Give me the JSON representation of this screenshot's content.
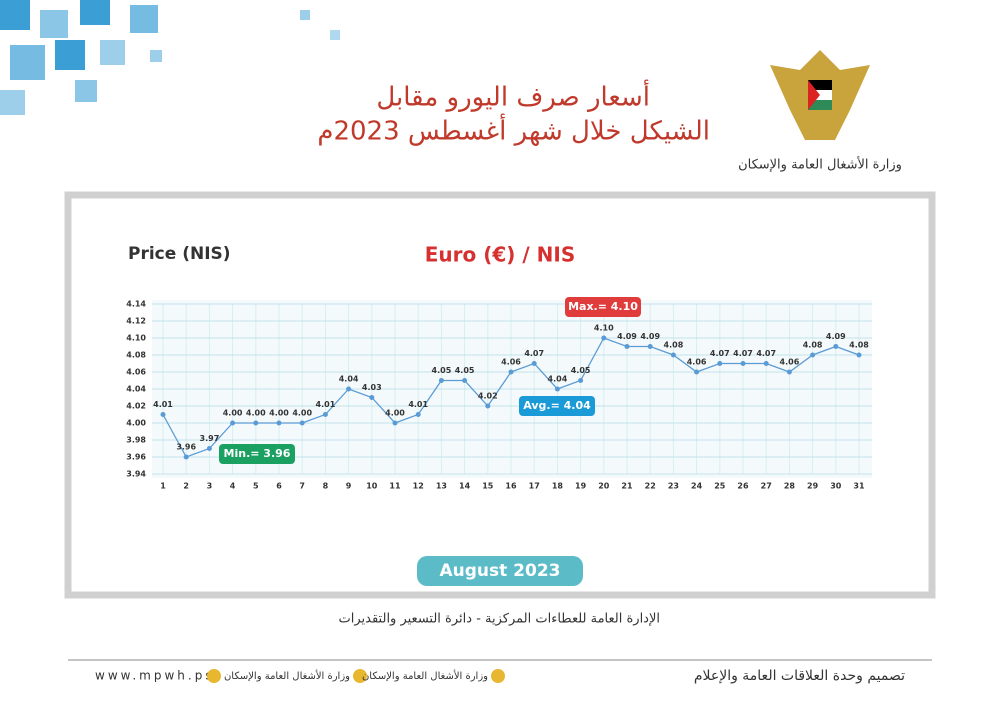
{
  "header": {
    "title_line1": "أسعار صرف اليورو مقابل",
    "title_line2": "الشيكل خلال شهر أغسطس 2023م",
    "ministry": "وزارة الأشغال العامة والإسكان"
  },
  "chart_data": {
    "type": "line",
    "title": "Euro (€) / NIS",
    "y_label": "Price (NIS)",
    "x_label": "August  2023",
    "categories": [
      "1",
      "2",
      "3",
      "4",
      "5",
      "6",
      "7",
      "8",
      "9",
      "10",
      "11",
      "12",
      "13",
      "14",
      "15",
      "16",
      "17",
      "18",
      "19",
      "20",
      "21",
      "22",
      "23",
      "24",
      "25",
      "26",
      "27",
      "28",
      "29",
      "30",
      "31"
    ],
    "values": [
      4.01,
      3.96,
      3.97,
      4.0,
      4.0,
      4.0,
      4.0,
      4.01,
      4.04,
      4.03,
      4.0,
      4.01,
      4.05,
      4.05,
      4.02,
      4.06,
      4.07,
      4.04,
      4.05,
      4.1,
      4.09,
      4.09,
      4.08,
      4.06,
      4.07,
      4.07,
      4.07,
      4.06,
      4.08,
      4.09,
      4.08
    ],
    "value_labels": [
      "4.01",
      "3.96",
      "3.97",
      "4.00",
      "4.00",
      "4.00",
      "4.00",
      "4.01",
      "4.04",
      "4.03",
      "4.00",
      "4.01",
      "4.05",
      "4.05",
      "4.02",
      "4.06",
      "4.07",
      "4.04",
      "4.05",
      "4.10",
      "4.09",
      "4.09",
      "4.08",
      "4.06",
      "4.07",
      "4.07",
      "4.07",
      "4.06",
      "4.08",
      "4.09",
      "4.08"
    ],
    "color": "#5b9bd5",
    "ylim": [
      3.94,
      4.14
    ],
    "yticks": [
      3.94,
      3.96,
      3.98,
      {
        "value": 4,
        "label": "4.00"
      },
      4.02,
      4.04,
      4.06,
      4.08,
      {
        "value": 4.1,
        "label": "4.10"
      },
      4.12,
      4.14
    ],
    "grid": true,
    "annotations": [
      {
        "text": "Max.= 4.10",
        "color": "#e03c3c"
      },
      {
        "text": "Avg.= 4.04",
        "color": "#1a9ad6"
      },
      {
        "text": "Min.= 3.96",
        "color": "#1aa060"
      }
    ]
  },
  "footer": {
    "source": "الإدارة العامة للعطاءات المركزية - دائرة التسعير والتقديرات",
    "website": "www.mpwh.ps",
    "facebook": "وزارة الأشغال العامة والإسكان",
    "instagram": "وزارة الأشغال العامة والإسكان",
    "design": "تصميم وحدة العلاقات العامة والإعلام"
  }
}
